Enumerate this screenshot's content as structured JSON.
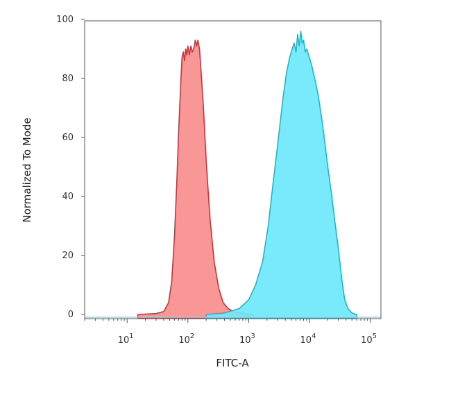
{
  "chart_data": {
    "type": "area",
    "title": "",
    "xlabel": "FITC-A",
    "ylabel": "Normalized To Mode",
    "x_scale": "log",
    "xlim": [
      2,
      150000
    ],
    "ylim": [
      0,
      100
    ],
    "grid": false,
    "legend": "none",
    "x_ticks": [
      {
        "value": 10,
        "base": "10",
        "exp": "1"
      },
      {
        "value": 100,
        "base": "10",
        "exp": "2"
      },
      {
        "value": 1000,
        "base": "10",
        "exp": "3"
      },
      {
        "value": 10000,
        "base": "10",
        "exp": "4"
      },
      {
        "value": 100000,
        "base": "10",
        "exp": "5"
      }
    ],
    "y_ticks": [
      0,
      20,
      40,
      60,
      80,
      100
    ],
    "series": [
      {
        "fill": "#f88d8d",
        "stroke": "#c8343c",
        "points": [
          [
            15,
            0
          ],
          [
            30,
            0.3
          ],
          [
            40,
            1
          ],
          [
            48,
            4
          ],
          [
            54,
            11
          ],
          [
            60,
            26
          ],
          [
            66,
            46
          ],
          [
            71,
            64
          ],
          [
            76,
            78
          ],
          [
            80,
            87
          ],
          [
            84,
            89
          ],
          [
            88,
            86
          ],
          [
            92,
            90
          ],
          [
            96,
            88
          ],
          [
            100,
            91
          ],
          [
            106,
            88
          ],
          [
            112,
            91
          ],
          [
            118,
            89
          ],
          [
            125,
            90
          ],
          [
            132,
            93
          ],
          [
            140,
            91
          ],
          [
            146,
            93
          ],
          [
            155,
            90
          ],
          [
            165,
            82
          ],
          [
            180,
            70
          ],
          [
            200,
            52
          ],
          [
            230,
            33
          ],
          [
            270,
            18
          ],
          [
            320,
            9
          ],
          [
            380,
            4
          ],
          [
            460,
            2
          ],
          [
            560,
            1
          ],
          [
            800,
            0.4
          ],
          [
            1200,
            0
          ]
        ]
      },
      {
        "fill": "#6ee8fb",
        "stroke": "#1fb7c6",
        "points": [
          [
            200,
            0
          ],
          [
            400,
            0.5
          ],
          [
            700,
            2
          ],
          [
            1000,
            5
          ],
          [
            1300,
            10
          ],
          [
            1700,
            18
          ],
          [
            2100,
            30
          ],
          [
            2500,
            44
          ],
          [
            2900,
            55
          ],
          [
            3300,
            65
          ],
          [
            3700,
            74
          ],
          [
            4200,
            82
          ],
          [
            4700,
            87
          ],
          [
            5200,
            90
          ],
          [
            5600,
            92
          ],
          [
            6000,
            89
          ],
          [
            6400,
            95
          ],
          [
            6800,
            91
          ],
          [
            7200,
            96
          ],
          [
            7600,
            92
          ],
          [
            8000,
            93
          ],
          [
            8500,
            89
          ],
          [
            9000,
            90
          ],
          [
            10000,
            87
          ],
          [
            11000,
            84
          ],
          [
            12500,
            79
          ],
          [
            14000,
            74
          ],
          [
            16000,
            66
          ],
          [
            18000,
            58
          ],
          [
            20000,
            50
          ],
          [
            23000,
            41
          ],
          [
            26000,
            32
          ],
          [
            30000,
            22
          ],
          [
            34000,
            12
          ],
          [
            38000,
            5
          ],
          [
            43000,
            2
          ],
          [
            50000,
            0.5
          ],
          [
            60000,
            0
          ]
        ]
      }
    ]
  }
}
